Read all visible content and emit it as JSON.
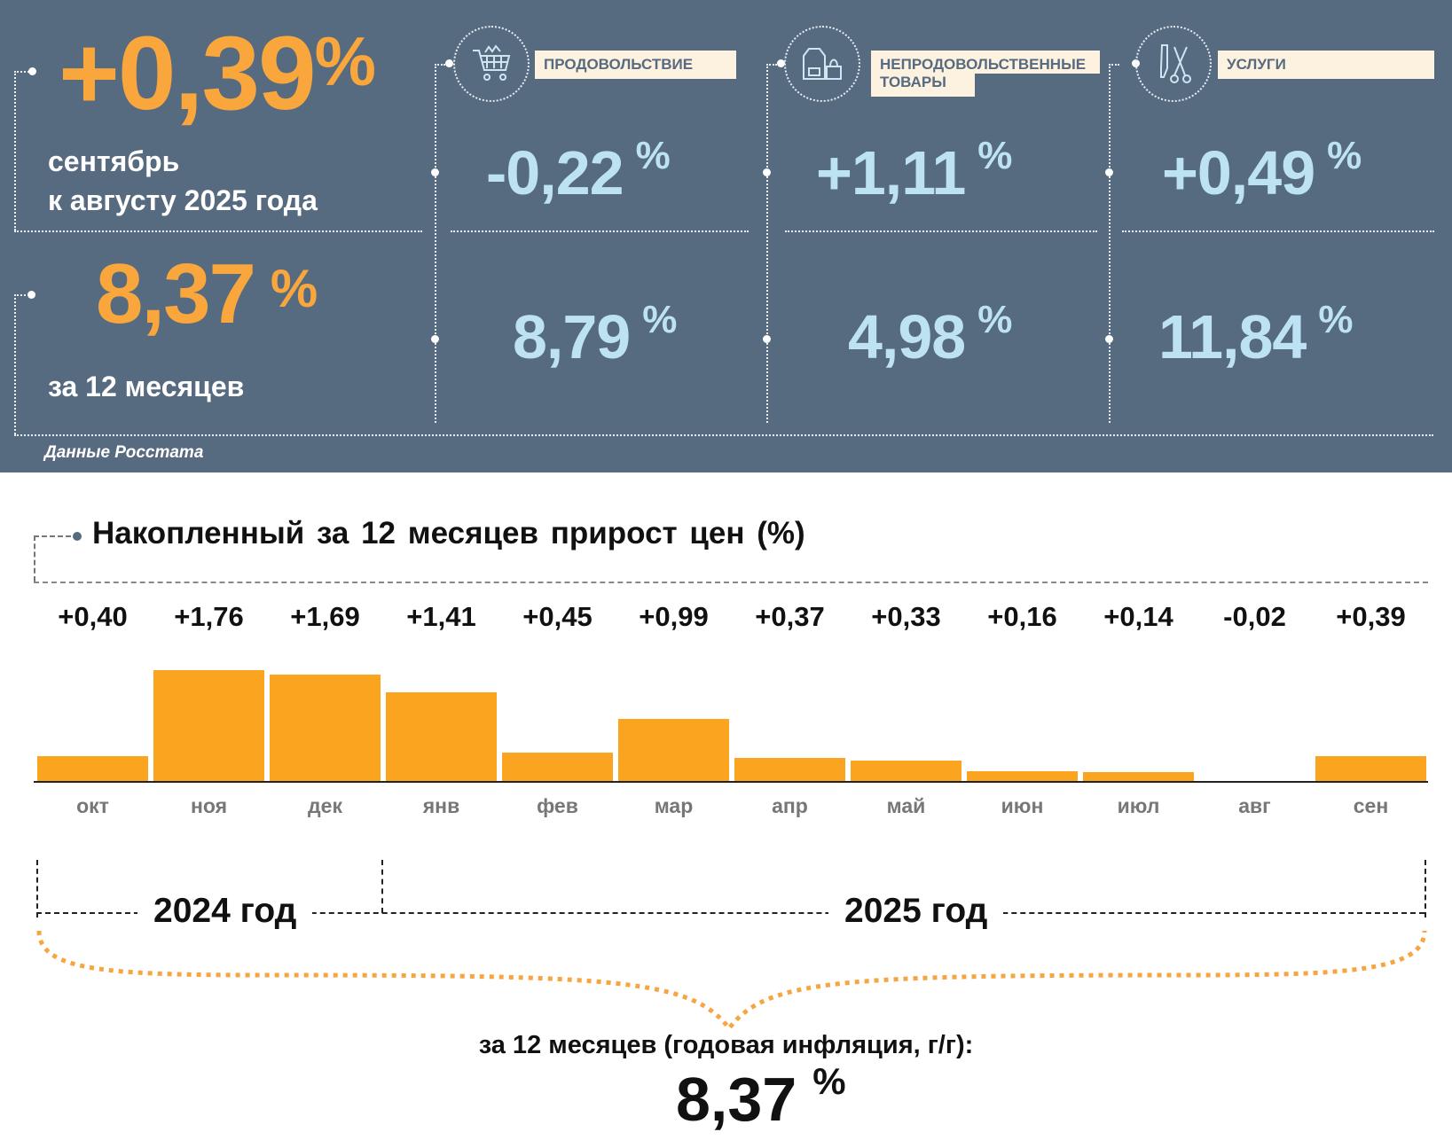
{
  "header": {
    "monthly": {
      "value": "+0,39",
      "unit": "%",
      "line1": "сентябрь",
      "line2": "к августу 2025 года"
    },
    "annual": {
      "value": "8,37",
      "unit": "%",
      "caption": "за 12 месяцев"
    },
    "source": "Данные Росстата",
    "categories": [
      {
        "icon": "shopping-cart-icon",
        "label": "ПРОДОВОЛЬСТВИЕ",
        "monthly": "-0,22",
        "annual": "8,79",
        "unit": "%"
      },
      {
        "icon": "clothing-bag-icon",
        "label_line1": "НЕПРОДОВОЛЬСТВЕННЫЕ",
        "label_line2": "ТОВАРЫ",
        "monthly": "+1,11",
        "annual": "4,98",
        "unit": "%"
      },
      {
        "icon": "comb-scissors-icon",
        "label": "УСЛУГИ",
        "monthly": "+0,49",
        "annual": "11,84",
        "unit": "%"
      }
    ]
  },
  "chart_data": {
    "type": "bar",
    "title": "Накопленный за 12 месяцев прирост цен (%)",
    "categories": [
      "окт",
      "ноя",
      "дек",
      "янв",
      "фев",
      "мар",
      "апр",
      "май",
      "июн",
      "июл",
      "авг",
      "сен"
    ],
    "values": [
      0.4,
      1.76,
      1.69,
      1.41,
      0.45,
      0.99,
      0.37,
      0.33,
      0.16,
      0.14,
      -0.02,
      0.39
    ],
    "value_labels": [
      "+0,40",
      "+1,76",
      "+1,69",
      "+1,41",
      "+0,45",
      "+0,99",
      "+0,37",
      "+0,33",
      "+0,16",
      "+0,14",
      "-0,02",
      "+0,39"
    ],
    "ylim": [
      0,
      1.76
    ],
    "year_labels": [
      "2024 год",
      "2025 год"
    ],
    "summary_caption": "за 12 месяцев (годовая инфляция, г/г):",
    "summary_value": "8,37",
    "summary_unit": "%",
    "bar_color": "#fba41f"
  }
}
